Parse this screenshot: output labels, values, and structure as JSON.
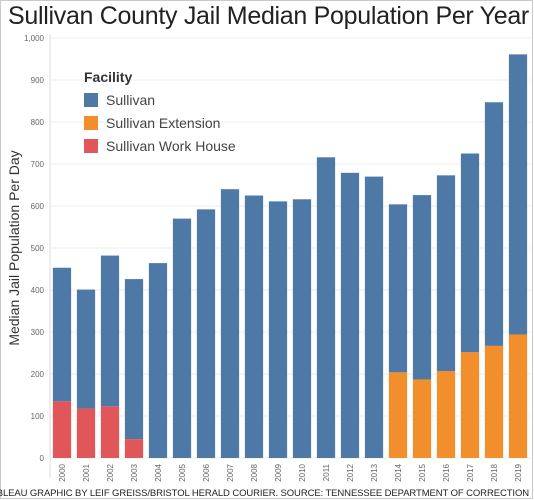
{
  "title": "Sullivan County Jail Median Population Per Year",
  "footer": "TABLEAU GRAPHIC BY LEIF GREISS/BRISTOL HERALD COURIER. SOURCE: TENNESSEE DEPARTMENT OF CORRECTION",
  "legend": {
    "title": "Facility",
    "items": [
      {
        "label": "Sullivan",
        "color": "#4e79a7"
      },
      {
        "label": "Sullivan Extension",
        "color": "#f28e2b"
      },
      {
        "label": "Sullivan Work House",
        "color": "#e15759"
      }
    ]
  },
  "chart_data": {
    "type": "bar",
    "stacked": true,
    "title": "Sullivan County Jail Median Population Per Year",
    "xlabel": "",
    "ylabel": "Median Jail Population Per Day",
    "ylim": [
      0,
      1000
    ],
    "yticks": [
      "0",
      "100",
      "200",
      "300",
      "400",
      "500",
      "600",
      "700",
      "800",
      "900",
      "1,000"
    ],
    "grid": true,
    "legend_position": "top-left",
    "categories": [
      "2000",
      "2001",
      "2002",
      "2003",
      "2004",
      "2005",
      "2006",
      "2007",
      "2008",
      "2009",
      "2010",
      "2011",
      "2012",
      "2013",
      "2014",
      "2015",
      "2016",
      "2017",
      "2018",
      "2019"
    ],
    "series": [
      {
        "name": "Sullivan Work House",
        "color": "#e15759",
        "values": [
          135,
          118,
          123,
          45,
          0,
          0,
          0,
          0,
          0,
          0,
          0,
          0,
          0,
          0,
          0,
          0,
          0,
          0,
          0,
          0
        ]
      },
      {
        "name": "Sullivan Extension",
        "color": "#f28e2b",
        "values": [
          0,
          0,
          0,
          0,
          0,
          0,
          0,
          0,
          0,
          0,
          0,
          0,
          0,
          0,
          204,
          187,
          207,
          252,
          267,
          294
        ]
      },
      {
        "name": "Sullivan",
        "color": "#4e79a7",
        "values": [
          318,
          283,
          359,
          381,
          464,
          570,
          592,
          640,
          625,
          611,
          616,
          716,
          679,
          670,
          400,
          439,
          466,
          473,
          580,
          667
        ]
      }
    ]
  }
}
